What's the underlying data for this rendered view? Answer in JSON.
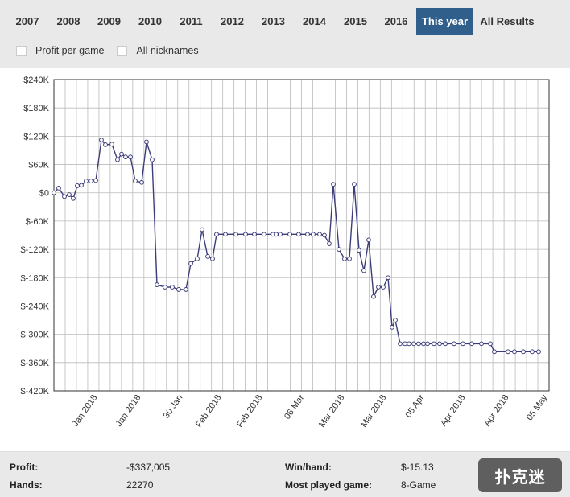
{
  "tabs": [
    {
      "label": "2007",
      "active": false
    },
    {
      "label": "2008",
      "active": false
    },
    {
      "label": "2009",
      "active": false
    },
    {
      "label": "2010",
      "active": false
    },
    {
      "label": "2011",
      "active": false
    },
    {
      "label": "2012",
      "active": false
    },
    {
      "label": "2013",
      "active": false
    },
    {
      "label": "2014",
      "active": false
    },
    {
      "label": "2015",
      "active": false
    },
    {
      "label": "2016",
      "active": false
    },
    {
      "label": "This year",
      "active": true
    },
    {
      "label": "All Results",
      "active": false
    }
  ],
  "options": {
    "profit_per_game": {
      "label": "Profit per game",
      "checked": false
    },
    "all_nicknames": {
      "label": "All nicknames",
      "checked": false
    }
  },
  "colors": {
    "active_tab": "#2f5f8a",
    "series_line": "#3d3d7a",
    "grid": "#bbbbbb",
    "page_bg": "#e9e9e9"
  },
  "chart_data": {
    "type": "line",
    "title": "",
    "xlabel": "",
    "ylabel": "",
    "ylim": [
      -420,
      240
    ],
    "y_unit": "thousands of $",
    "yticks": [
      240,
      180,
      120,
      60,
      0,
      -60,
      -120,
      -180,
      -240,
      -300,
      -360,
      -420
    ],
    "ytick_labels": [
      "$240K",
      "$180K",
      "$120K",
      "$60K",
      "$0",
      "$-60K",
      "$-120K",
      "$-180K",
      "$-240K",
      "$-300K",
      "$-360K",
      "$-420K"
    ],
    "xtick_labels": [
      "Jan 2018",
      "Jan 2018",
      "30 Jan",
      "Feb 2018",
      "Feb 2018",
      "06 Mar",
      "Mar 2018",
      "Mar 2018",
      "05 Apr",
      "Apr 2018",
      "Apr 2018",
      "05 May"
    ],
    "grid": true,
    "series": [
      {
        "values": [
          0,
          10,
          -8,
          -4,
          -12,
          15,
          16,
          25,
          25,
          26,
          112,
          102,
          103,
          70,
          82,
          76,
          76,
          25,
          22,
          108,
          70,
          -195,
          -200,
          -200,
          -205,
          -205,
          -150,
          -140,
          -78,
          -135,
          -140,
          -88,
          -88,
          -88,
          -88,
          -88,
          -88,
          -88,
          -88,
          -88,
          -88,
          -88,
          -88,
          -88,
          -88,
          -90,
          -108,
          18,
          -120,
          -140,
          -140,
          18,
          -122,
          -165,
          -100,
          -220,
          -200,
          -200,
          -180,
          -285,
          -270,
          -320,
          -320,
          -320,
          -320,
          -320,
          -320,
          -320,
          -320,
          -320,
          -320,
          -320,
          -320,
          -320,
          -320,
          -320,
          -337,
          -337,
          -337,
          -337,
          -337,
          -337
        ]
      }
    ]
  },
  "stats": {
    "profit_label": "Profit:",
    "profit_value": "-$337,005",
    "hands_label": "Hands:",
    "hands_value": "22270",
    "winhand_label": "Win/hand:",
    "winhand_value": "$-15.13",
    "most_played_label": "Most played game:",
    "most_played_value": "8-Game"
  },
  "watermark": {
    "text": "扑克迷"
  }
}
